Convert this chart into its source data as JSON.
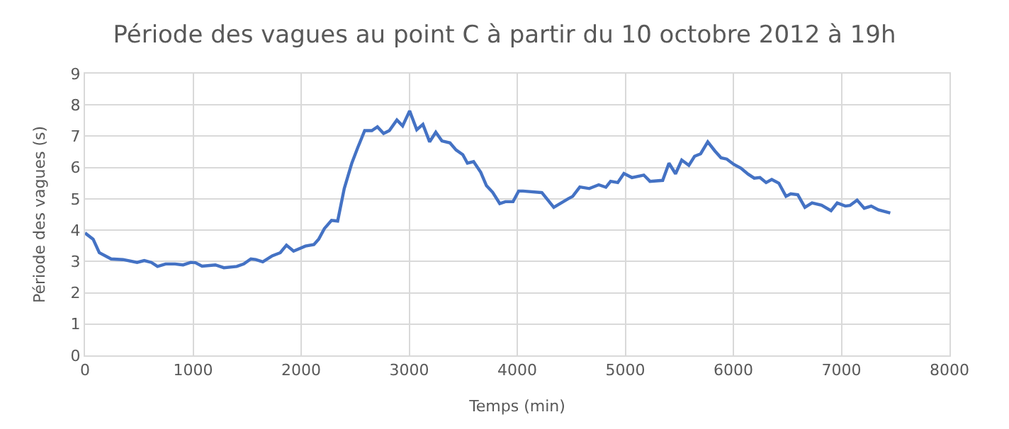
{
  "chart_data": {
    "type": "line",
    "title": "Période des vagues au point C à partir du 10 octobre 2012 à 19h",
    "xlabel": "Temps (min)",
    "ylabel": "Période des vagues (s)",
    "x": [
      0,
      75,
      132,
      241,
      351,
      482,
      548,
      614,
      671,
      746,
      833,
      908,
      978,
      1022,
      1083,
      1206,
      1285,
      1404,
      1469,
      1535,
      1579,
      1645,
      1732,
      1807,
      1864,
      1930,
      2039,
      2118,
      2162,
      2215,
      2281,
      2338,
      2399,
      2469,
      2522,
      2588,
      2654,
      2706,
      2763,
      2816,
      2886,
      2939,
      3004,
      3070,
      3127,
      3189,
      3246,
      3303,
      3377,
      3434,
      3496,
      3539,
      3596,
      3662,
      3715,
      3772,
      3838,
      3890,
      3961,
      4013,
      4053,
      4228,
      4338,
      4470,
      4513,
      4579,
      4667,
      4754,
      4820,
      4864,
      4930,
      4987,
      5061,
      5171,
      5228,
      5346,
      5404,
      5465,
      5522,
      5588,
      5641,
      5697,
      5763,
      5829,
      5886,
      5939,
      6004,
      6070,
      6136,
      6193,
      6246,
      6303,
      6355,
      6421,
      6487,
      6531,
      6596,
      6662,
      6728,
      6816,
      6904,
      6961,
      7036,
      7079,
      7145,
      7211,
      7276,
      7342,
      7452
    ],
    "series": [
      {
        "color": "#4472c4",
        "values": [
          3.91,
          3.71,
          3.28,
          3.08,
          3.06,
          2.97,
          3.03,
          2.97,
          2.84,
          2.92,
          2.92,
          2.89,
          2.97,
          2.96,
          2.85,
          2.89,
          2.8,
          2.84,
          2.92,
          3.08,
          3.06,
          2.99,
          3.18,
          3.28,
          3.52,
          3.33,
          3.49,
          3.54,
          3.71,
          4.05,
          4.31,
          4.29,
          5.33,
          6.14,
          6.62,
          7.18,
          7.18,
          7.3,
          7.09,
          7.18,
          7.52,
          7.33,
          7.81,
          7.21,
          7.38,
          6.82,
          7.13,
          6.85,
          6.79,
          6.56,
          6.41,
          6.14,
          6.19,
          5.85,
          5.42,
          5.21,
          4.85,
          4.91,
          4.91,
          5.25,
          5.25,
          5.2,
          4.73,
          5.0,
          5.08,
          5.38,
          5.33,
          5.45,
          5.37,
          5.56,
          5.52,
          5.81,
          5.68,
          5.76,
          5.56,
          5.59,
          6.14,
          5.8,
          6.24,
          6.07,
          6.36,
          6.44,
          6.82,
          6.53,
          6.31,
          6.27,
          6.1,
          5.98,
          5.79,
          5.66,
          5.68,
          5.52,
          5.62,
          5.5,
          5.08,
          5.16,
          5.13,
          4.73,
          4.87,
          4.8,
          4.62,
          4.87,
          4.77,
          4.79,
          4.96,
          4.7,
          4.77,
          4.65,
          4.55
        ]
      }
    ],
    "xlim": [
      0,
      8000
    ],
    "xticks": [
      0,
      1000,
      2000,
      3000,
      4000,
      5000,
      6000,
      7000,
      8000
    ],
    "ylim": [
      0,
      9
    ],
    "yticks": [
      0,
      1,
      2,
      3,
      4,
      5,
      6,
      7,
      8,
      9
    ],
    "grid": true,
    "marker": "none",
    "line_style": "solid"
  }
}
